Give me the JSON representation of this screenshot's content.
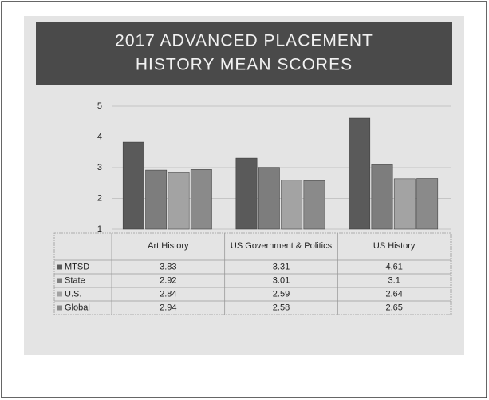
{
  "chart_data": {
    "type": "bar",
    "title": [
      "2017 ADVANCED PLACEMENT",
      "HISTORY MEAN SCORES"
    ],
    "categories": [
      "Art History",
      "US Government & Politics",
      "US History"
    ],
    "series": [
      {
        "name": "MTSD",
        "color": "#5a5a5a",
        "values": [
          3.83,
          3.31,
          4.61
        ]
      },
      {
        "name": "State",
        "color": "#7d7d7d",
        "values": [
          2.92,
          3.01,
          3.1
        ]
      },
      {
        "name": "U.S.",
        "color": "#a3a3a3",
        "values": [
          2.84,
          2.59,
          2.64
        ]
      },
      {
        "name": "Global",
        "color": "#8a8a8a",
        "values": [
          2.94,
          2.58,
          2.65
        ]
      }
    ],
    "ylim": [
      1,
      5
    ],
    "yticks": [
      1,
      2,
      3,
      4,
      5
    ],
    "grid": true
  }
}
